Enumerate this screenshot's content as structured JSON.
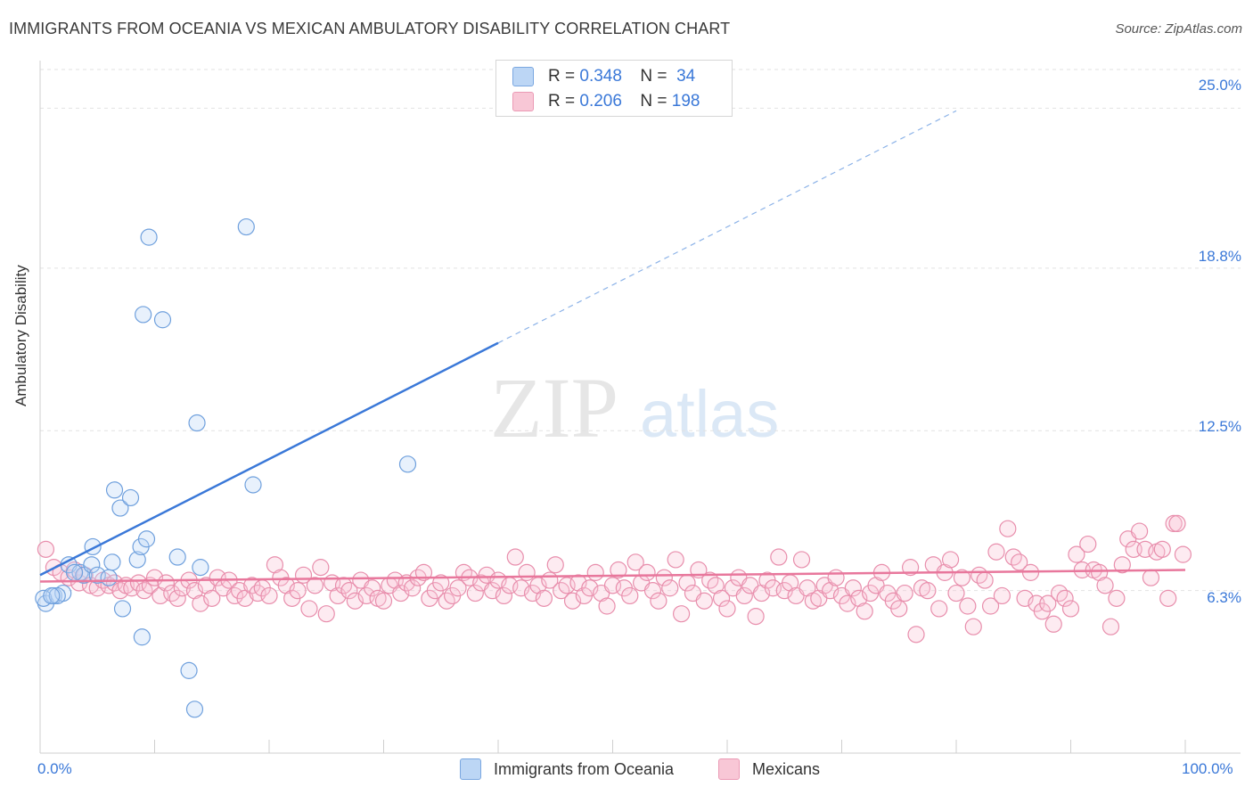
{
  "title": "IMMIGRANTS FROM OCEANIA VS MEXICAN AMBULATORY DISABILITY CORRELATION CHART",
  "source": "Source: ZipAtlas.com",
  "watermark": {
    "zip": "ZIP",
    "atlas": "atlas"
  },
  "legend": {
    "r_label": "R =",
    "n_label": "N =",
    "rows": [
      {
        "r": "0.348",
        "n": "34",
        "color": "#a8c8f0"
      },
      {
        "r": "0.206",
        "n": "198",
        "color": "#f5b8cb"
      }
    ]
  },
  "colors": {
    "blue": "#3a78d8",
    "pink": "#e8779c",
    "blue_fill": "#bcd6f5",
    "pink_fill": "#f8c7d6"
  },
  "chart_data": {
    "type": "scatter",
    "title": "IMMIGRANTS FROM OCEANIA VS MEXICAN AMBULATORY DISABILITY CORRELATION CHART",
    "xlabel": "",
    "ylabel": "Ambulatory Disability",
    "xlim": [
      0,
      100
    ],
    "ylim": [
      0,
      26.5
    ],
    "x_tick_labels": [
      "0.0%",
      "100.0%"
    ],
    "y_ticks": [
      6.3,
      12.5,
      18.8,
      25.0
    ],
    "y_tick_labels": [
      "6.3%",
      "12.5%",
      "18.8%",
      "25.0%"
    ],
    "grid": true,
    "legend_placement": "bottom",
    "series": [
      {
        "name": "Immigrants from Oceania",
        "r": 0.348,
        "n": 34,
        "trend": {
          "x0": 0,
          "y0": 6.9,
          "x1": 40,
          "y1": 15.9,
          "dashed_to_x": 80,
          "dashed_to_y": 24.9
        },
        "points": [
          [
            0.5,
            5.8
          ],
          [
            1.2,
            6.1
          ],
          [
            2.0,
            6.2
          ],
          [
            0.3,
            6.0
          ],
          [
            1.5,
            6.1
          ],
          [
            2.5,
            7.3
          ],
          [
            3.5,
            7.0
          ],
          [
            3.8,
            6.9
          ],
          [
            4.5,
            7.3
          ],
          [
            5.0,
            6.9
          ],
          [
            6.0,
            6.8
          ],
          [
            4.6,
            8.0
          ],
          [
            6.3,
            7.4
          ],
          [
            6.5,
            10.2
          ],
          [
            7.0,
            9.5
          ],
          [
            7.9,
            9.9
          ],
          [
            8.5,
            7.5
          ],
          [
            8.8,
            8.0
          ],
          [
            9.3,
            8.3
          ],
          [
            12.0,
            7.6
          ],
          [
            14.0,
            7.2
          ],
          [
            9.0,
            17.0
          ],
          [
            10.7,
            16.8
          ],
          [
            9.5,
            20.0
          ],
          [
            18.0,
            20.4
          ],
          [
            13.7,
            12.8
          ],
          [
            18.6,
            10.4
          ],
          [
            32.1,
            11.2
          ],
          [
            7.2,
            5.6
          ],
          [
            8.9,
            4.5
          ],
          [
            13.0,
            3.2
          ],
          [
            13.5,
            1.7
          ],
          [
            3.0,
            7.0
          ],
          [
            1.0,
            6.1
          ]
        ]
      },
      {
        "name": "Mexicans",
        "r": 0.206,
        "n": 198,
        "trend": {
          "x0": 0,
          "y0": 6.65,
          "x1": 100,
          "y1": 7.1
        },
        "points": [
          [
            0.5,
            7.9
          ],
          [
            1.2,
            7.2
          ],
          [
            1.8,
            7.0
          ],
          [
            2.5,
            6.8
          ],
          [
            3.0,
            7.1
          ],
          [
            3.4,
            6.6
          ],
          [
            3.9,
            6.9
          ],
          [
            4.4,
            6.5
          ],
          [
            5.0,
            6.4
          ],
          [
            5.5,
            6.7
          ],
          [
            6.0,
            6.5
          ],
          [
            6.5,
            6.6
          ],
          [
            7.0,
            6.3
          ],
          [
            7.5,
            6.5
          ],
          [
            8.0,
            6.4
          ],
          [
            8.6,
            6.6
          ],
          [
            9.1,
            6.3
          ],
          [
            9.6,
            6.5
          ],
          [
            10.0,
            6.8
          ],
          [
            10.5,
            6.1
          ],
          [
            11.0,
            6.6
          ],
          [
            11.5,
            6.2
          ],
          [
            12.0,
            6.0
          ],
          [
            12.4,
            6.4
          ],
          [
            13.0,
            6.7
          ],
          [
            13.5,
            6.3
          ],
          [
            14.0,
            5.8
          ],
          [
            14.5,
            6.5
          ],
          [
            15.0,
            6.0
          ],
          [
            15.5,
            6.8
          ],
          [
            16.0,
            6.4
          ],
          [
            16.5,
            6.7
          ],
          [
            17.0,
            6.1
          ],
          [
            17.4,
            6.3
          ],
          [
            17.9,
            6.0
          ],
          [
            18.5,
            6.5
          ],
          [
            19.0,
            6.2
          ],
          [
            19.4,
            6.4
          ],
          [
            20.0,
            6.1
          ],
          [
            20.5,
            7.3
          ],
          [
            21.0,
            6.8
          ],
          [
            21.5,
            6.5
          ],
          [
            22.0,
            6.0
          ],
          [
            22.5,
            6.3
          ],
          [
            23.0,
            6.9
          ],
          [
            23.5,
            5.6
          ],
          [
            24.0,
            6.5
          ],
          [
            24.5,
            7.2
          ],
          [
            25.0,
            5.4
          ],
          [
            25.5,
            6.6
          ],
          [
            26.0,
            6.1
          ],
          [
            26.5,
            6.5
          ],
          [
            27.0,
            6.3
          ],
          [
            27.5,
            5.9
          ],
          [
            28.0,
            6.7
          ],
          [
            28.5,
            6.1
          ],
          [
            29.0,
            6.4
          ],
          [
            29.5,
            6.0
          ],
          [
            30.0,
            5.9
          ],
          [
            30.5,
            6.5
          ],
          [
            31.0,
            6.7
          ],
          [
            31.5,
            6.2
          ],
          [
            32.0,
            6.6
          ],
          [
            32.5,
            6.4
          ],
          [
            33.0,
            6.8
          ],
          [
            33.5,
            7.0
          ],
          [
            34.0,
            6.0
          ],
          [
            34.5,
            6.3
          ],
          [
            35.0,
            6.6
          ],
          [
            35.5,
            5.9
          ],
          [
            36.0,
            6.1
          ],
          [
            36.5,
            6.4
          ],
          [
            37.0,
            7.0
          ],
          [
            37.5,
            6.8
          ],
          [
            38.0,
            6.2
          ],
          [
            38.5,
            6.6
          ],
          [
            39.0,
            6.9
          ],
          [
            39.5,
            6.3
          ],
          [
            40.0,
            6.7
          ],
          [
            40.5,
            6.1
          ],
          [
            41.0,
            6.5
          ],
          [
            41.5,
            7.6
          ],
          [
            42.0,
            6.4
          ],
          [
            42.5,
            7.0
          ],
          [
            43.0,
            6.2
          ],
          [
            43.5,
            6.5
          ],
          [
            44.0,
            6.0
          ],
          [
            44.5,
            6.7
          ],
          [
            45.0,
            7.3
          ],
          [
            45.5,
            6.3
          ],
          [
            46.0,
            6.5
          ],
          [
            46.5,
            5.9
          ],
          [
            47.0,
            6.6
          ],
          [
            47.5,
            6.1
          ],
          [
            48.0,
            6.4
          ],
          [
            48.5,
            7.0
          ],
          [
            49.0,
            6.2
          ],
          [
            49.5,
            5.7
          ],
          [
            50.0,
            6.5
          ],
          [
            50.5,
            7.1
          ],
          [
            51.0,
            6.4
          ],
          [
            51.5,
            6.1
          ],
          [
            52.0,
            7.4
          ],
          [
            52.5,
            6.6
          ],
          [
            53.0,
            7.0
          ],
          [
            53.5,
            6.3
          ],
          [
            54.0,
            5.9
          ],
          [
            54.5,
            6.8
          ],
          [
            55.0,
            6.4
          ],
          [
            55.5,
            7.5
          ],
          [
            56.0,
            5.4
          ],
          [
            56.5,
            6.6
          ],
          [
            57.0,
            6.2
          ],
          [
            57.5,
            7.1
          ],
          [
            58.0,
            5.9
          ],
          [
            58.5,
            6.7
          ],
          [
            59.0,
            6.5
          ],
          [
            59.5,
            6.0
          ],
          [
            60.0,
            5.6
          ],
          [
            60.5,
            6.4
          ],
          [
            61.0,
            6.8
          ],
          [
            61.5,
            6.1
          ],
          [
            62.0,
            6.5
          ],
          [
            62.5,
            5.3
          ],
          [
            63.0,
            6.2
          ],
          [
            63.5,
            6.7
          ],
          [
            64.0,
            6.4
          ],
          [
            64.5,
            7.6
          ],
          [
            65.0,
            6.3
          ],
          [
            65.5,
            6.6
          ],
          [
            66.0,
            6.1
          ],
          [
            66.5,
            7.5
          ],
          [
            67.0,
            6.4
          ],
          [
            67.5,
            5.9
          ],
          [
            68.0,
            6.0
          ],
          [
            68.5,
            6.5
          ],
          [
            69.0,
            6.3
          ],
          [
            69.5,
            6.8
          ],
          [
            70.0,
            6.1
          ],
          [
            70.5,
            5.8
          ],
          [
            71.0,
            6.4
          ],
          [
            71.5,
            6.0
          ],
          [
            72.0,
            5.5
          ],
          [
            72.5,
            6.2
          ],
          [
            73.0,
            6.5
          ],
          [
            73.5,
            7.0
          ],
          [
            74.0,
            6.2
          ],
          [
            74.5,
            5.9
          ],
          [
            75.0,
            5.6
          ],
          [
            75.5,
            6.2
          ],
          [
            76.0,
            7.2
          ],
          [
            76.5,
            4.6
          ],
          [
            77.0,
            6.4
          ],
          [
            77.5,
            6.3
          ],
          [
            78.0,
            7.3
          ],
          [
            78.5,
            5.6
          ],
          [
            79.0,
            7.0
          ],
          [
            79.5,
            7.5
          ],
          [
            80.0,
            6.2
          ],
          [
            80.5,
            6.8
          ],
          [
            81.0,
            5.7
          ],
          [
            81.5,
            4.9
          ],
          [
            82.0,
            6.9
          ],
          [
            82.5,
            6.7
          ],
          [
            83.0,
            5.7
          ],
          [
            83.5,
            7.8
          ],
          [
            84.0,
            6.1
          ],
          [
            84.5,
            8.7
          ],
          [
            85.0,
            7.6
          ],
          [
            85.5,
            7.4
          ],
          [
            86.0,
            6.0
          ],
          [
            86.5,
            7.0
          ],
          [
            87.0,
            5.8
          ],
          [
            87.5,
            5.5
          ],
          [
            88.0,
            5.8
          ],
          [
            88.5,
            5.0
          ],
          [
            89.0,
            6.2
          ],
          [
            89.5,
            6.0
          ],
          [
            90.0,
            5.6
          ],
          [
            90.5,
            7.7
          ],
          [
            91.0,
            7.1
          ],
          [
            91.5,
            8.1
          ],
          [
            92.0,
            7.1
          ],
          [
            92.5,
            7.0
          ],
          [
            93.0,
            6.5
          ],
          [
            93.5,
            4.9
          ],
          [
            94.0,
            6.0
          ],
          [
            94.5,
            7.3
          ],
          [
            95.0,
            8.3
          ],
          [
            95.5,
            7.9
          ],
          [
            96.0,
            8.6
          ],
          [
            96.5,
            7.9
          ],
          [
            97.0,
            6.8
          ],
          [
            97.5,
            7.8
          ],
          [
            98.0,
            7.9
          ],
          [
            98.5,
            6.0
          ],
          [
            99.0,
            8.9
          ],
          [
            99.3,
            8.9
          ],
          [
            99.8,
            7.7
          ]
        ]
      }
    ]
  },
  "bottom_legend": [
    {
      "label": "Immigrants from Oceania",
      "color": "#bcd6f5"
    },
    {
      "label": "Mexicans",
      "color": "#f8c7d6"
    }
  ]
}
